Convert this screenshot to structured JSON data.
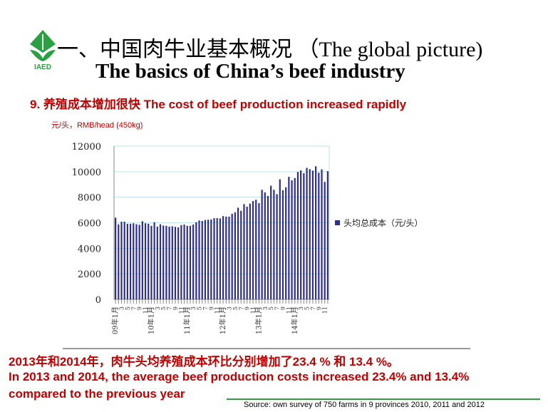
{
  "header": {
    "logo_text": "IAED",
    "title_cn": "一、中国肉牛业基本概况 （The global picture)",
    "title_en": "The basics of China’s beef industry"
  },
  "subtitle": "9. 养殖成本增加很快  The cost of beef production increased rapidly",
  "unit": "元/头，RMB/head (450kg)",
  "chart_data": {
    "type": "bar",
    "title": "",
    "xlabel": "",
    "ylabel": "元/头，RMB/head (450kg)",
    "ylim": [
      0,
      12000
    ],
    "yticks": [
      "0",
      "2000",
      "4000",
      "6000",
      "8000",
      "10000",
      "12000"
    ],
    "legend": {
      "label": "头均总成本（元/头）",
      "placement": "right"
    },
    "bar_color": "#2e2e8c",
    "year_labels": [
      "09年1月",
      "10年1月",
      "11年1月",
      "12年1月",
      "13年1月",
      "14年1月"
    ],
    "categories_note": "monthly 2009-01 to 2014-12",
    "values": [
      6400,
      5870,
      6080,
      6080,
      5920,
      5920,
      5960,
      5880,
      5840,
      6120,
      5960,
      5920,
      5760,
      6040,
      5700,
      5880,
      5780,
      5760,
      5700,
      5720,
      5680,
      5640,
      5820,
      5860,
      5760,
      5760,
      5860,
      6040,
      6180,
      6140,
      6220,
      6240,
      6260,
      6360,
      6360,
      6340,
      6520,
      6480,
      6480,
      6700,
      6820,
      7180,
      6940,
      7460,
      7260,
      7500,
      7700,
      7800,
      7540,
      8580,
      8380,
      8100,
      8900,
      8580,
      8240,
      9400,
      8540,
      8780,
      9600,
      9320,
      9500,
      9980,
      10100,
      9880,
      10300,
      10200,
      10080,
      10420,
      9920,
      10180,
      9200,
      10040
    ]
  },
  "notes": {
    "cn": "2013年和2014年，肉牛头均养殖成本环比分别增加了23.4 % 和 13.4 %。",
    "en": "In 2013 and 2014, the average beef production costs increased 23.4% and 13.4% compared to the previous year"
  },
  "source": "Source: own survey of 750 farms in 9 provinces 2010, 2011 and 2012"
}
